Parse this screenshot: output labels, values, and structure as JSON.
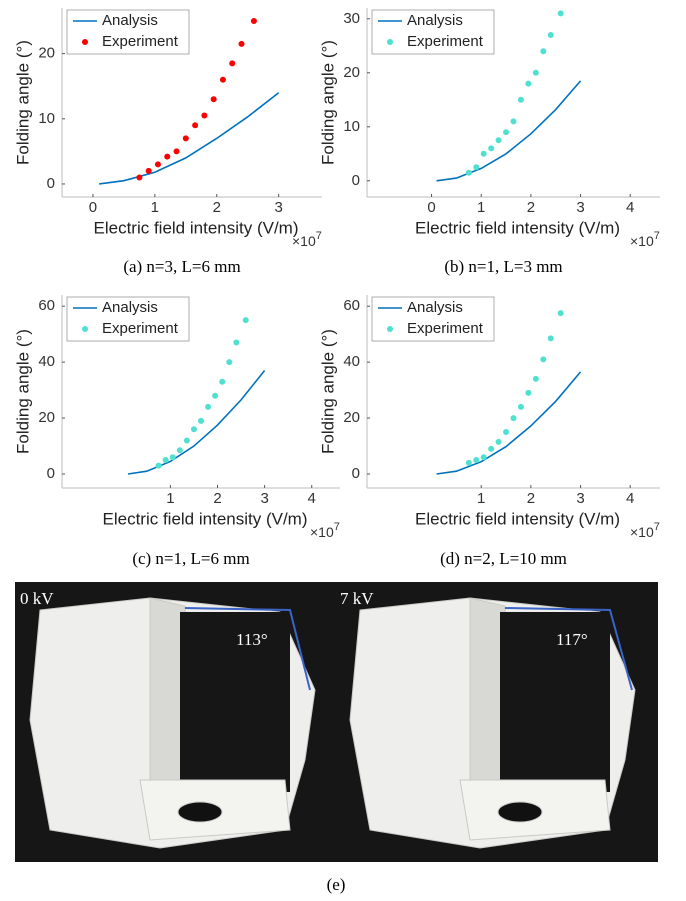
{
  "chart_data": [
    {
      "type": "line",
      "caption": "(a) n=3, L=6 mm",
      "xlabel": "Electric field intensity (V/m)",
      "ylabel": "Folding angle (°)",
      "x_multiplier": "×10",
      "x_exponent": "7",
      "xlim": [
        -0.5,
        3.7
      ],
      "xticks": [
        0,
        1,
        2,
        3
      ],
      "ylim": [
        -2,
        27
      ],
      "yticks": [
        0,
        10,
        20
      ],
      "legend": "upper left",
      "series": [
        {
          "name": "Analysis",
          "mode": "line",
          "color": "#0072bd",
          "x": [
            0.1,
            0.5,
            1,
            1.5,
            2,
            2.5,
            3
          ],
          "values": [
            0,
            0.5,
            1.8,
            4,
            7,
            10.3,
            14
          ]
        },
        {
          "name": "Experiment",
          "mode": "markers",
          "color": "#ff0000",
          "x": [
            0.75,
            0.9,
            1.05,
            1.2,
            1.35,
            1.5,
            1.65,
            1.8,
            1.95,
            2.1,
            2.25,
            2.4,
            2.6
          ],
          "values": [
            1,
            2,
            3,
            4.2,
            5,
            7,
            9,
            10.5,
            13,
            16,
            18.5,
            21.5,
            25
          ]
        }
      ]
    },
    {
      "type": "line",
      "caption": "(b) n=1, L=3 mm",
      "xlabel": "Electric field intensity (V/m)",
      "ylabel": "Folding angle (°)",
      "x_multiplier": "×10",
      "x_exponent": "7",
      "xlim": [
        -1.3,
        4.6
      ],
      "xticks": [
        0,
        1,
        2,
        3,
        4
      ],
      "ylim": [
        -3,
        32
      ],
      "yticks": [
        0,
        10,
        20,
        30
      ],
      "legend": "upper left",
      "series": [
        {
          "name": "Analysis",
          "mode": "line",
          "color": "#0072bd",
          "x": [
            0.1,
            0.5,
            1,
            1.5,
            2,
            2.5,
            3
          ],
          "values": [
            0,
            0.5,
            2.3,
            5,
            8.7,
            13.2,
            18.5
          ]
        },
        {
          "name": "Experiment",
          "mode": "markers",
          "color": "#4fe0d0",
          "x": [
            0.75,
            0.9,
            1.05,
            1.2,
            1.35,
            1.5,
            1.65,
            1.8,
            1.95,
            2.1,
            2.25,
            2.4,
            2.6
          ],
          "values": [
            1.5,
            2.5,
            5,
            6,
            7.5,
            9,
            11,
            15,
            18,
            20,
            24,
            27,
            31
          ]
        }
      ]
    },
    {
      "type": "line",
      "caption": "(c) n=1, L=6 mm",
      "xlabel": "Electric field intensity (V/m)",
      "ylabel": "Folding angle (°)",
      "x_multiplier": "×10",
      "x_exponent": "7",
      "xlim": [
        -1.3,
        4.6
      ],
      "xticks": [
        1,
        2,
        3,
        4
      ],
      "ylim": [
        -5,
        64
      ],
      "yticks": [
        0,
        20,
        40,
        60
      ],
      "legend": "upper left",
      "series": [
        {
          "name": "Analysis",
          "mode": "line",
          "color": "#0072bd",
          "x": [
            0.1,
            0.5,
            1,
            1.5,
            2,
            2.5,
            3
          ],
          "values": [
            0,
            1,
            4.5,
            10,
            17.5,
            26.5,
            37
          ]
        },
        {
          "name": "Experiment",
          "mode": "markers",
          "color": "#4fe0d0",
          "x": [
            0.75,
            0.9,
            1.05,
            1.2,
            1.35,
            1.5,
            1.65,
            1.8,
            1.95,
            2.1,
            2.25,
            2.4,
            2.6
          ],
          "values": [
            3,
            5,
            6,
            8.5,
            12,
            16,
            19,
            24,
            28,
            33,
            40,
            47,
            55
          ]
        }
      ]
    },
    {
      "type": "line",
      "caption": "(d) n=2, L=10 mm",
      "xlabel": "Electric field intensity (V/m)",
      "ylabel": "Folding angle (°)",
      "x_multiplier": "×10",
      "x_exponent": "7",
      "xlim": [
        -1.3,
        4.6
      ],
      "xticks": [
        1,
        2,
        3,
        4
      ],
      "ylim": [
        -5,
        64
      ],
      "yticks": [
        0,
        20,
        40,
        60
      ],
      "legend": "upper left",
      "series": [
        {
          "name": "Analysis",
          "mode": "line",
          "color": "#0072bd",
          "x": [
            0.1,
            0.5,
            1,
            1.5,
            2,
            2.5,
            3
          ],
          "values": [
            0,
            1,
            4.4,
            9.8,
            17.2,
            26,
            36.5
          ]
        },
        {
          "name": "Experiment",
          "mode": "markers",
          "color": "#4fe0d0",
          "x": [
            0.75,
            0.9,
            1.05,
            1.2,
            1.35,
            1.5,
            1.65,
            1.8,
            1.95,
            2.1,
            2.25,
            2.4,
            2.6
          ],
          "values": [
            4,
            5,
            6,
            9,
            11.5,
            15,
            20,
            24,
            29,
            34,
            41,
            48.5,
            57.5
          ]
        }
      ]
    }
  ],
  "photo": {
    "left_label": "0 kV",
    "left_angle": "113°",
    "right_label": "7 kV",
    "right_angle": "117°",
    "caption": "(e)"
  }
}
